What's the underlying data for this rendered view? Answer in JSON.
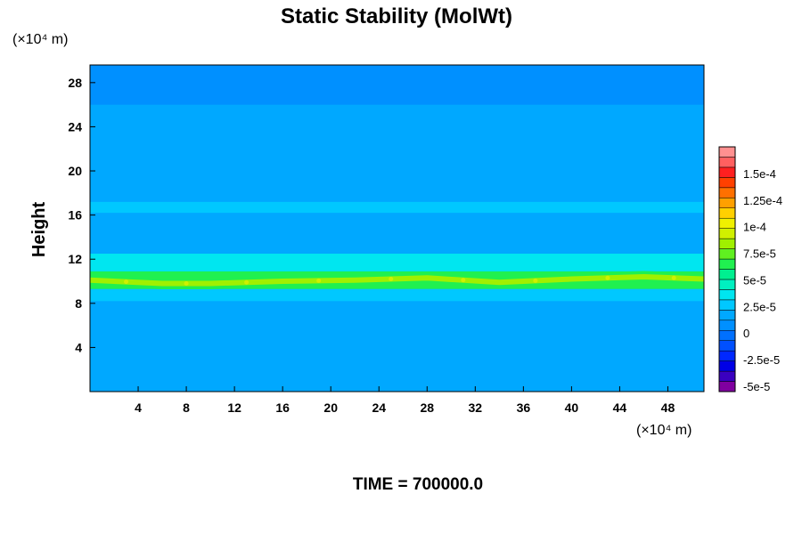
{
  "chart_data": {
    "type": "heatmap",
    "title": "Static Stability (MolWt)",
    "ylabel": "Height",
    "xlabel": "",
    "x_unit_label": "(×10⁴ m)",
    "y_unit_label": "(×10⁴ m)",
    "footer": "TIME = 700000.0",
    "xlim": [
      0,
      51
    ],
    "ylim": [
      0,
      29.6
    ],
    "x_ticks": [
      4,
      8,
      12,
      16,
      20,
      24,
      28,
      32,
      36,
      40,
      44,
      48
    ],
    "y_ticks": [
      4,
      8,
      12,
      16,
      20,
      24,
      28
    ],
    "colorbar": {
      "min": -5.5e-05,
      "max": 0.000175,
      "labels": [
        "1.5e-4",
        "1.25e-4",
        "1e-4",
        "7.5e-5",
        "5e-5",
        "2.5e-5",
        "0",
        "-2.5e-5",
        "-5e-5"
      ],
      "label_values": [
        0.00015,
        0.000125,
        0.0001,
        7.5e-05,
        5e-05,
        2.5e-05,
        0,
        -2.5e-05,
        -5e-05
      ],
      "colors": [
        "#8000a0",
        "#3a00c0",
        "#0000e6",
        "#0028ff",
        "#0050ff",
        "#0070ff",
        "#0090ff",
        "#00a8ff",
        "#00c8ff",
        "#00e6f0",
        "#00f0c0",
        "#00f090",
        "#20f050",
        "#60f020",
        "#a0f000",
        "#d0f000",
        "#f0f000",
        "#ffd000",
        "#ffa000",
        "#ff7000",
        "#ff4000",
        "#ff2020",
        "#ff6060",
        "#ff9090"
      ]
    },
    "bands": [
      {
        "y0": 0,
        "y1": 8.2,
        "value": 1.5e-05
      },
      {
        "y0": 8.2,
        "y1": 9.3,
        "value": 2.5e-05
      },
      {
        "y0": 9.3,
        "y1": 10.9,
        "value": 6.5e-05
      },
      {
        "y0": 10.9,
        "y1": 12.5,
        "value": 3.2e-05
      },
      {
        "y0": 12.5,
        "y1": 16.2,
        "value": 1.6e-05
      },
      {
        "y0": 16.2,
        "y1": 17.2,
        "value": 2.4e-05
      },
      {
        "y0": 17.2,
        "y1": 21.5,
        "value": 1.5e-05
      },
      {
        "y0": 21.5,
        "y1": 22.0,
        "value": 2e-05
      },
      {
        "y0": 22.0,
        "y1": 26.0,
        "value": 1.5e-05
      },
      {
        "y0": 26.0,
        "y1": 29.6,
        "value": 8e-06
      }
    ],
    "ridge": [
      {
        "x": 0,
        "y": 10.1,
        "value": 8e-05
      },
      {
        "x": 6,
        "y": 9.8,
        "value": 9e-05
      },
      {
        "x": 10,
        "y": 9.8,
        "value": 8.5e-05
      },
      {
        "x": 16,
        "y": 10.0,
        "value": 8.5e-05
      },
      {
        "x": 22,
        "y": 10.1,
        "value": 8e-05
      },
      {
        "x": 28,
        "y": 10.3,
        "value": 8.5e-05
      },
      {
        "x": 34,
        "y": 9.9,
        "value": 7e-05
      },
      {
        "x": 40,
        "y": 10.2,
        "value": 6e-05
      },
      {
        "x": 46,
        "y": 10.4,
        "value": 6.5e-05
      },
      {
        "x": 51,
        "y": 10.2,
        "value": 6e-05
      }
    ]
  }
}
